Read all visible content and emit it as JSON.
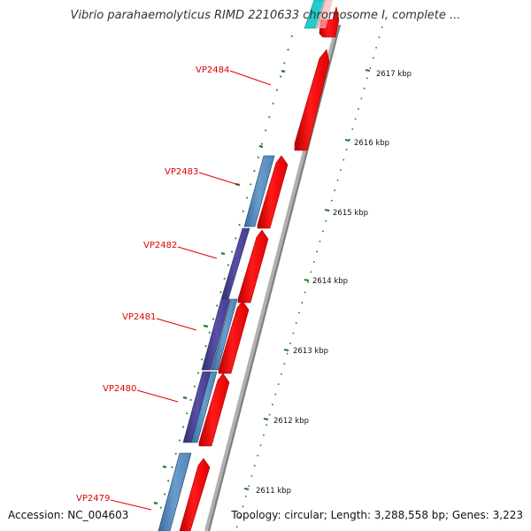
{
  "title": "Vibrio parahaemolyticus RIMD 2210633 chromosome I, complete ...",
  "footer": {
    "accession": "Accession: NC_004603",
    "summary": "Topology: circular; Length: 3,288,558 bp; Genes: 3,223"
  },
  "colors": {
    "forward_cds": "#ee0000",
    "reverse_cds_light": "#4f86b8",
    "reverse_cds_dark": "#4a3f8f",
    "highlight_cds": "#22cccc",
    "backbone": "#888888",
    "tick_marks": "#2a7a2a",
    "gene_label": "#e00000"
  },
  "gene_labels": [
    "VP2484",
    "VP2483",
    "VP2482",
    "VP2481",
    "VP2480",
    "VP2479"
  ],
  "scale_labels": [
    "2617 kbp",
    "2616 kbp",
    "2615 kbp",
    "2614 kbp",
    "2613 kbp",
    "2612 kbp",
    "2611 kbp"
  ]
}
